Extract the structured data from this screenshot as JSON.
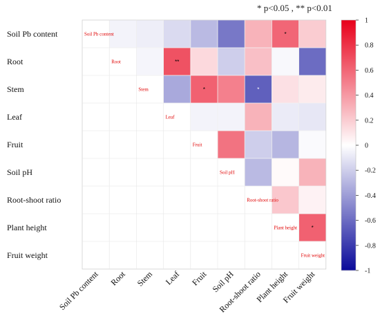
{
  "header": {
    "significance_note": "* p<0.05 , ** p<0.01"
  },
  "chart_data": {
    "type": "heatmap",
    "layout": "upper-triangle correlation matrix",
    "variables": [
      "Soil Pb content",
      "Root",
      "Stem",
      "Leaf",
      "Fruit",
      "Soil pH",
      "Root-shoot ratio",
      "Plant height",
      "Fruit weight"
    ],
    "upper_triangle_values": [
      [
        null,
        -0.05,
        -0.07,
        -0.15,
        -0.28,
        -0.55,
        0.3,
        0.6,
        0.2
      ],
      [
        null,
        null,
        -0.04,
        0.68,
        0.15,
        -0.2,
        0.25,
        -0.03,
        -0.6
      ],
      [
        null,
        null,
        null,
        -0.35,
        0.62,
        0.5,
        -0.65,
        0.12,
        0.08
      ],
      [
        null,
        null,
        null,
        null,
        -0.05,
        -0.05,
        0.3,
        -0.08,
        -0.1
      ],
      [
        null,
        null,
        null,
        null,
        null,
        0.55,
        -0.2,
        -0.3,
        -0.02
      ],
      [
        null,
        null,
        null,
        null,
        null,
        null,
        -0.28,
        0.02,
        0.3
      ],
      [
        null,
        null,
        null,
        null,
        null,
        null,
        null,
        0.22,
        0.05
      ],
      [
        null,
        null,
        null,
        null,
        null,
        null,
        null,
        null,
        0.62
      ]
    ],
    "significance": [
      {
        "row": "Soil Pb content",
        "col": "Plant height",
        "mark": "*"
      },
      {
        "row": "Root",
        "col": "Leaf",
        "mark": "**"
      },
      {
        "row": "Stem",
        "col": "Fruit",
        "mark": "*"
      },
      {
        "row": "Stem",
        "col": "Root-shoot ratio",
        "mark": "*"
      },
      {
        "row": "Plant height",
        "col": "Fruit weight",
        "mark": "*"
      }
    ],
    "colorbar": {
      "range": [
        -1,
        1
      ],
      "ticks": [
        "1",
        "0.8",
        "0.6",
        "0.4",
        "0.2",
        "0",
        "-0.2",
        "-0.4",
        "-0.6",
        "-0.8",
        "-1"
      ],
      "colors": {
        "negative": "#0a0a9a",
        "zero": "#ffffff",
        "positive": "#e8001a"
      }
    }
  }
}
